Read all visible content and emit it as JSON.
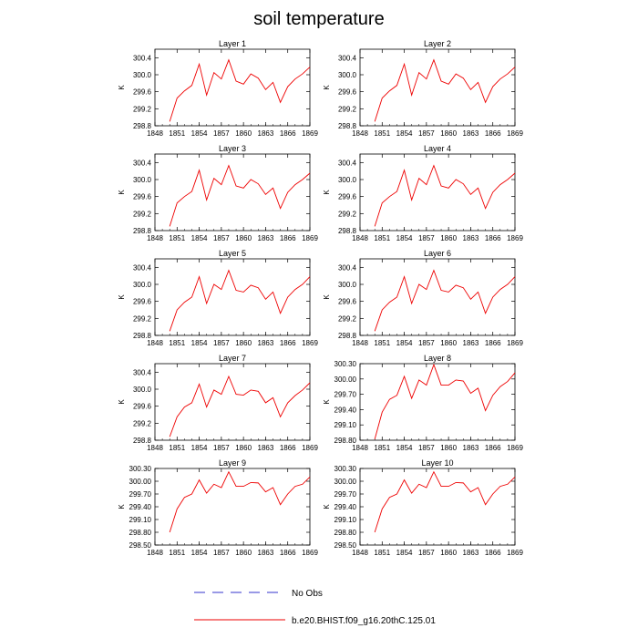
{
  "figure": {
    "title": "soil temperature"
  },
  "legend": {
    "entries": [
      {
        "label": "No Obs",
        "color": "#3333cc",
        "style": "dashed"
      },
      {
        "label": "b.e20.BHIST.f09_g16.20thC.125.01",
        "color": "#ee0000",
        "style": "solid"
      }
    ]
  },
  "chart_data": [
    {
      "type": "line",
      "title": "Layer 1",
      "ylabel": "K",
      "xlim": [
        1848,
        1869
      ],
      "xticks": [
        "1848",
        "1851",
        "1854",
        "1857",
        "1860",
        "1863",
        "1866",
        "1869"
      ],
      "ylim": [
        298.8,
        300.6
      ],
      "yticks": [
        "298.8",
        "299.2",
        "299.6",
        "300.0",
        "300.4"
      ],
      "x": [
        1850,
        1851,
        1852,
        1853,
        1854,
        1855,
        1856,
        1857,
        1858,
        1859,
        1860,
        1861,
        1862,
        1863,
        1864,
        1865,
        1866,
        1867,
        1868,
        1869
      ],
      "series": [
        {
          "name": "b.e20.BHIST.f09_g16.20thC.125.01",
          "color": "#ee0000",
          "values": [
            298.9,
            299.45,
            299.62,
            299.75,
            300.25,
            299.52,
            300.05,
            299.9,
            300.35,
            299.85,
            299.78,
            300.02,
            299.92,
            299.65,
            299.82,
            299.35,
            299.72,
            299.9,
            300.02,
            300.18
          ]
        }
      ]
    },
    {
      "type": "line",
      "title": "Layer 2",
      "ylabel": "K",
      "xlim": [
        1848,
        1869
      ],
      "xticks": [
        "1848",
        "1851",
        "1854",
        "1857",
        "1860",
        "1863",
        "1866",
        "1869"
      ],
      "ylim": [
        298.8,
        300.6
      ],
      "yticks": [
        "298.8",
        "299.2",
        "299.6",
        "300.0",
        "300.4"
      ],
      "x": [
        1850,
        1851,
        1852,
        1853,
        1854,
        1855,
        1856,
        1857,
        1858,
        1859,
        1860,
        1861,
        1862,
        1863,
        1864,
        1865,
        1866,
        1867,
        1868,
        1869
      ],
      "series": [
        {
          "name": "b.e20.BHIST.f09_g16.20thC.125.01",
          "color": "#ee0000",
          "values": [
            298.9,
            299.45,
            299.62,
            299.75,
            300.25,
            299.52,
            300.05,
            299.9,
            300.35,
            299.85,
            299.78,
            300.02,
            299.92,
            299.65,
            299.82,
            299.35,
            299.72,
            299.9,
            300.02,
            300.18
          ]
        }
      ]
    },
    {
      "type": "line",
      "title": "Layer 3",
      "ylabel": "K",
      "xlim": [
        1848,
        1869
      ],
      "xticks": [
        "1848",
        "1851",
        "1854",
        "1857",
        "1860",
        "1863",
        "1866",
        "1869"
      ],
      "ylim": [
        298.8,
        300.6
      ],
      "yticks": [
        "298.8",
        "299.2",
        "299.6",
        "300.0",
        "300.4"
      ],
      "x": [
        1850,
        1851,
        1852,
        1853,
        1854,
        1855,
        1856,
        1857,
        1858,
        1859,
        1860,
        1861,
        1862,
        1863,
        1864,
        1865,
        1866,
        1867,
        1868,
        1869
      ],
      "series": [
        {
          "name": "b.e20.BHIST.f09_g16.20thC.125.01",
          "color": "#ee0000",
          "values": [
            298.9,
            299.45,
            299.6,
            299.72,
            300.22,
            299.52,
            300.03,
            299.88,
            300.33,
            299.85,
            299.8,
            300.0,
            299.9,
            299.65,
            299.8,
            299.32,
            299.7,
            299.88,
            300.0,
            300.15
          ]
        }
      ]
    },
    {
      "type": "line",
      "title": "Layer 4",
      "ylabel": "K",
      "xlim": [
        1848,
        1869
      ],
      "xticks": [
        "1848",
        "1851",
        "1854",
        "1857",
        "1860",
        "1863",
        "1866",
        "1869"
      ],
      "ylim": [
        298.8,
        300.6
      ],
      "yticks": [
        "298.8",
        "299.2",
        "299.6",
        "300.0",
        "300.4"
      ],
      "x": [
        1850,
        1851,
        1852,
        1853,
        1854,
        1855,
        1856,
        1857,
        1858,
        1859,
        1860,
        1861,
        1862,
        1863,
        1864,
        1865,
        1866,
        1867,
        1868,
        1869
      ],
      "series": [
        {
          "name": "b.e20.BHIST.f09_g16.20thC.125.01",
          "color": "#ee0000",
          "values": [
            298.9,
            299.45,
            299.6,
            299.72,
            300.22,
            299.52,
            300.03,
            299.88,
            300.33,
            299.85,
            299.8,
            300.0,
            299.9,
            299.65,
            299.8,
            299.32,
            299.7,
            299.88,
            300.0,
            300.15
          ]
        }
      ]
    },
    {
      "type": "line",
      "title": "Layer 5",
      "ylabel": "K",
      "xlim": [
        1848,
        1869
      ],
      "xticks": [
        "1848",
        "1851",
        "1854",
        "1857",
        "1860",
        "1863",
        "1866",
        "1869"
      ],
      "ylim": [
        298.8,
        300.6
      ],
      "yticks": [
        "298.8",
        "299.2",
        "299.6",
        "300.0",
        "300.4"
      ],
      "x": [
        1850,
        1851,
        1852,
        1853,
        1854,
        1855,
        1856,
        1857,
        1858,
        1859,
        1860,
        1861,
        1862,
        1863,
        1864,
        1865,
        1866,
        1867,
        1868,
        1869
      ],
      "series": [
        {
          "name": "b.e20.BHIST.f09_g16.20thC.125.01",
          "color": "#ee0000",
          "values": [
            298.9,
            299.4,
            299.58,
            299.7,
            300.18,
            299.55,
            300.0,
            299.88,
            300.33,
            299.86,
            299.82,
            299.98,
            299.92,
            299.65,
            299.82,
            299.32,
            299.7,
            299.88,
            300.0,
            300.18
          ]
        }
      ]
    },
    {
      "type": "line",
      "title": "Layer 6",
      "ylabel": "K",
      "xlim": [
        1848,
        1869
      ],
      "xticks": [
        "1848",
        "1851",
        "1854",
        "1857",
        "1860",
        "1863",
        "1866",
        "1869"
      ],
      "ylim": [
        298.8,
        300.6
      ],
      "yticks": [
        "298.8",
        "299.2",
        "299.6",
        "300.0",
        "300.4"
      ],
      "x": [
        1850,
        1851,
        1852,
        1853,
        1854,
        1855,
        1856,
        1857,
        1858,
        1859,
        1860,
        1861,
        1862,
        1863,
        1864,
        1865,
        1866,
        1867,
        1868,
        1869
      ],
      "series": [
        {
          "name": "b.e20.BHIST.f09_g16.20thC.125.01",
          "color": "#ee0000",
          "values": [
            298.9,
            299.4,
            299.58,
            299.7,
            300.18,
            299.55,
            300.0,
            299.88,
            300.33,
            299.86,
            299.82,
            299.98,
            299.92,
            299.65,
            299.82,
            299.32,
            299.7,
            299.88,
            300.0,
            300.18
          ]
        }
      ]
    },
    {
      "type": "line",
      "title": "Layer 7",
      "ylabel": "K",
      "xlim": [
        1848,
        1869
      ],
      "xticks": [
        "1848",
        "1851",
        "1854",
        "1857",
        "1860",
        "1863",
        "1866",
        "1869"
      ],
      "ylim": [
        298.8,
        300.6
      ],
      "yticks": [
        "298.8",
        "299.2",
        "299.6",
        "300.0",
        "300.4"
      ],
      "x": [
        1850,
        1851,
        1852,
        1853,
        1854,
        1855,
        1856,
        1857,
        1858,
        1859,
        1860,
        1861,
        1862,
        1863,
        1864,
        1865,
        1866,
        1867,
        1868,
        1869
      ],
      "series": [
        {
          "name": "b.e20.BHIST.f09_g16.20thC.125.01",
          "color": "#ee0000",
          "values": [
            298.88,
            299.35,
            299.58,
            299.68,
            300.12,
            299.58,
            299.98,
            299.88,
            300.3,
            299.88,
            299.86,
            299.98,
            299.95,
            299.68,
            299.8,
            299.35,
            299.68,
            299.85,
            299.98,
            300.15
          ]
        }
      ]
    },
    {
      "type": "line",
      "title": "Layer 8",
      "ylabel": "K",
      "xlim": [
        1848,
        1869
      ],
      "xticks": [
        "1848",
        "1851",
        "1854",
        "1857",
        "1860",
        "1863",
        "1866",
        "1869"
      ],
      "ylim": [
        298.8,
        300.3
      ],
      "yticks": [
        "298.80",
        "299.10",
        "299.40",
        "299.70",
        "300.00",
        "300.30"
      ],
      "x": [
        1850,
        1851,
        1852,
        1853,
        1854,
        1855,
        1856,
        1857,
        1858,
        1859,
        1860,
        1861,
        1862,
        1863,
        1864,
        1865,
        1866,
        1867,
        1868,
        1869
      ],
      "series": [
        {
          "name": "b.e20.BHIST.f09_g16.20thC.125.01",
          "color": "#ee0000",
          "values": [
            298.82,
            299.35,
            299.6,
            299.68,
            300.05,
            299.62,
            299.98,
            299.88,
            300.28,
            299.88,
            299.88,
            299.98,
            299.96,
            299.72,
            299.82,
            299.38,
            299.68,
            299.85,
            299.95,
            300.12
          ]
        }
      ]
    },
    {
      "type": "line",
      "title": "Layer 9",
      "ylabel": "K",
      "xlim": [
        1848,
        1869
      ],
      "xticks": [
        "1848",
        "1851",
        "1854",
        "1857",
        "1860",
        "1863",
        "1866",
        "1869"
      ],
      "ylim": [
        298.5,
        300.3
      ],
      "yticks": [
        "298.50",
        "298.80",
        "299.10",
        "299.40",
        "299.70",
        "300.00",
        "300.30"
      ],
      "x": [
        1850,
        1851,
        1852,
        1853,
        1854,
        1855,
        1856,
        1857,
        1858,
        1859,
        1860,
        1861,
        1862,
        1863,
        1864,
        1865,
        1866,
        1867,
        1868,
        1869
      ],
      "series": [
        {
          "name": "b.e20.BHIST.f09_g16.20thC.125.01",
          "color": "#ee0000",
          "values": [
            298.8,
            299.35,
            299.62,
            299.7,
            300.03,
            299.72,
            299.93,
            299.85,
            300.22,
            299.88,
            299.88,
            299.97,
            299.96,
            299.75,
            299.85,
            299.45,
            299.7,
            299.88,
            299.93,
            300.1
          ]
        }
      ]
    },
    {
      "type": "line",
      "title": "Layer 10",
      "ylabel": "K",
      "xlim": [
        1848,
        1869
      ],
      "xticks": [
        "1848",
        "1851",
        "1854",
        "1857",
        "1860",
        "1863",
        "1866",
        "1869"
      ],
      "ylim": [
        298.5,
        300.3
      ],
      "yticks": [
        "298.50",
        "298.80",
        "299.10",
        "299.40",
        "299.70",
        "300.00",
        "300.30"
      ],
      "x": [
        1850,
        1851,
        1852,
        1853,
        1854,
        1855,
        1856,
        1857,
        1858,
        1859,
        1860,
        1861,
        1862,
        1863,
        1864,
        1865,
        1866,
        1867,
        1868,
        1869
      ],
      "series": [
        {
          "name": "b.e20.BHIST.f09_g16.20thC.125.01",
          "color": "#ee0000",
          "values": [
            298.8,
            299.35,
            299.62,
            299.7,
            300.03,
            299.72,
            299.93,
            299.85,
            300.22,
            299.88,
            299.88,
            299.97,
            299.96,
            299.75,
            299.85,
            299.45,
            299.7,
            299.88,
            299.93,
            300.1
          ]
        }
      ]
    }
  ]
}
